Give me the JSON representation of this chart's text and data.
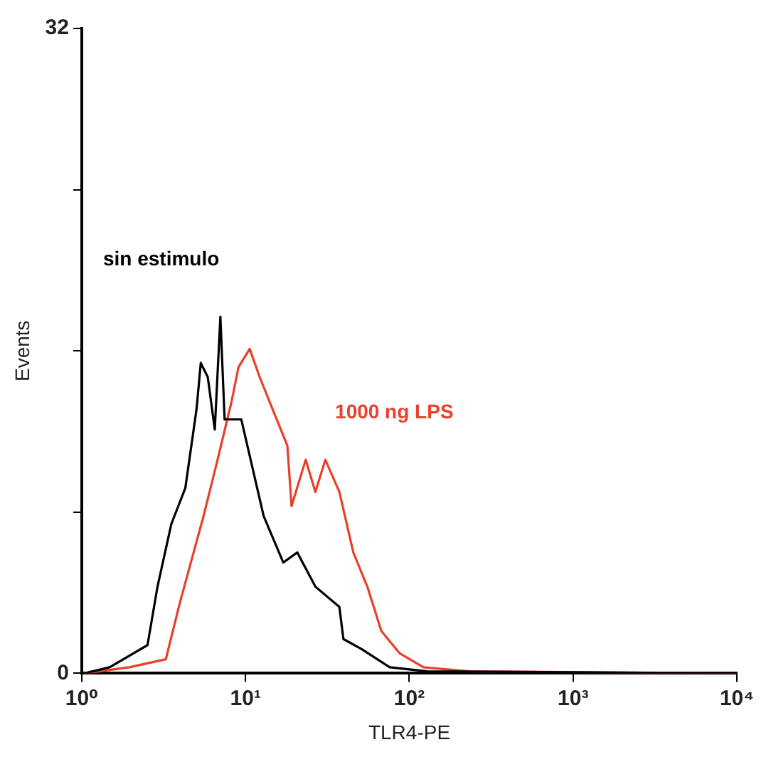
{
  "chart_data": {
    "type": "line",
    "xlabel": "TLR4-PE",
    "ylabel": "Events",
    "log": "x",
    "xlim": [
      1,
      10000
    ],
    "ylim": [
      0,
      32
    ],
    "xticks": [
      {
        "value": 1,
        "label": "10⁰"
      },
      {
        "value": 10,
        "label": "10¹"
      },
      {
        "value": 100,
        "label": "10²"
      },
      {
        "value": 1000,
        "label": "10³"
      },
      {
        "value": 10000,
        "label": "10⁴"
      }
    ],
    "yticks": [
      0,
      {
        "value": 8,
        "label": null
      },
      {
        "value": 16,
        "label": null
      },
      {
        "value": 24,
        "label": null
      },
      32
    ],
    "grid": false,
    "legend": false,
    "marker": "none",
    "line_style": "solid",
    "series": [
      {
        "name": "sin estimulo",
        "color": "#000000",
        "x": [
          1.04,
          1.48,
          2.52,
          2.9,
          3.52,
          4.29,
          5.02,
          5.33,
          5.88,
          6.49,
          7.02,
          7.45,
          9.42,
          12.9,
          17,
          20.7,
          26.7,
          37.4,
          39.6,
          51.2,
          75.9,
          129,
          10000
        ],
        "values": [
          0,
          0.3,
          1.4,
          4.3,
          7.4,
          9.2,
          13.1,
          15.4,
          14.7,
          12.1,
          17.7,
          12.6,
          12.6,
          7.8,
          5.5,
          6,
          4.3,
          3.3,
          1.7,
          1.2,
          0.3,
          0.1,
          0
        ]
      },
      {
        "name": "1000 ng LPS",
        "color": "#e8402a",
        "x": [
          1.04,
          1.95,
          3.26,
          3.97,
          5.54,
          6.75,
          8.22,
          9.06,
          10.6,
          12.2,
          14.8,
          18,
          19.1,
          23.3,
          26.7,
          30.7,
          37.4,
          45.5,
          55.4,
          67.5,
          87.1,
          122,
          233,
          10000
        ],
        "values": [
          0,
          0.3,
          0.7,
          3.5,
          7.8,
          10.6,
          13.5,
          15.2,
          16.1,
          14.7,
          13,
          11.3,
          8.3,
          10.6,
          9,
          10.6,
          9,
          6,
          4.3,
          2.1,
          1,
          0.3,
          0.1,
          0
        ]
      }
    ]
  }
}
